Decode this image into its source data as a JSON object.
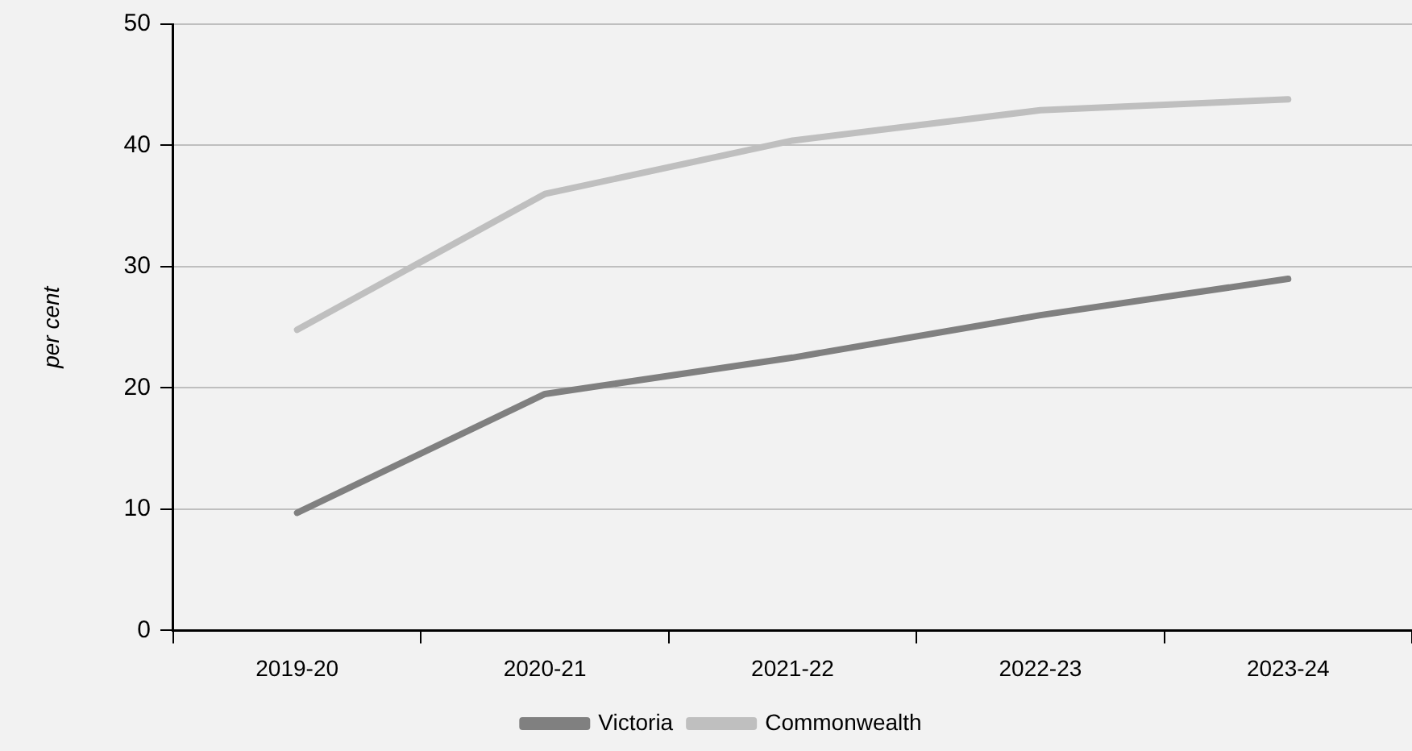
{
  "chart_data": {
    "type": "line",
    "ylabel": "per cent",
    "categories": [
      "2019-20",
      "2020-21",
      "2021-22",
      "2022-23",
      "2023-24"
    ],
    "series": [
      {
        "name": "Victoria",
        "color": "#808080",
        "values": [
          9.7,
          19.5,
          22.5,
          26,
          29
        ]
      },
      {
        "name": "Commonwealth",
        "color": "#bfbfbf",
        "values": [
          24.8,
          36,
          40.4,
          42.9,
          43.8
        ]
      }
    ],
    "ylim": [
      0,
      50
    ],
    "yticks": [
      0,
      10,
      20,
      30,
      40,
      50
    ],
    "grid": "y",
    "legend": "bottom",
    "marker": "none",
    "line_style": "solid"
  }
}
